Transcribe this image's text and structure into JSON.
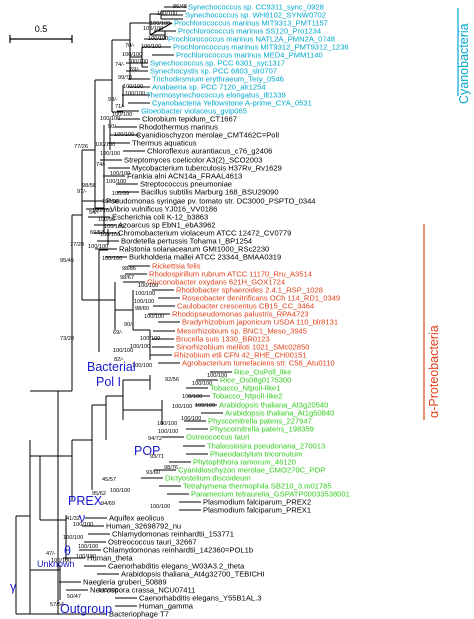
{
  "scale_bar": {
    "label": "0.5"
  },
  "colors": {
    "cyano": "#00a9cc",
    "proteo": "#e0421b",
    "euk": "#33cc1f",
    "black": "#000000",
    "blue": "#1a1ac8"
  },
  "leaves": [
    {
      "text": "Synechococcus sp. CC9311_sync_0928",
      "color": "cyano"
    },
    {
      "text": "Synechococcus sp. WH8102_SYNW0702",
      "color": "cyano"
    },
    {
      "text": "Prochlorococcus marinus MIT9313_PMT1157",
      "color": "cyano"
    },
    {
      "text": "Prochlorococcus marinus SS120_Pro1234",
      "color": "cyano"
    },
    {
      "text": "Prochlorococcus marinus NATL2A_PMN2A_0748",
      "color": "cyano"
    },
    {
      "text": "Prochlorococcus marinus MIT9312_PMT9312_1236",
      "color": "cyano"
    },
    {
      "text": "Prochlorococcus marinus MED4_PMM1140",
      "color": "cyano"
    },
    {
      "text": "Synechococcus sp. PCC 6301_syc1317",
      "color": "cyano"
    },
    {
      "text": "Synechocystis sp. PCC 6803_slr0707",
      "color": "cyano"
    },
    {
      "text": "Trichodesmium erythraeum_Tery_0546",
      "color": "cyano"
    },
    {
      "text": "Anabaena sp. PCC 7120_alr1254",
      "color": "cyano"
    },
    {
      "text": "Thermosynechococcus elongatus_tll1339",
      "color": "cyano"
    },
    {
      "text": "Cyanobacteria Yellowstone A-prime_CYA_0531",
      "color": "cyano"
    },
    {
      "text": "Gloeobacter violaceus_gvip065",
      "color": "cyano"
    },
    {
      "text": "Clorobium tepidum_CT1667",
      "color": "black"
    },
    {
      "text": "Rhodothermus marinus",
      "color": "black"
    },
    {
      "text": "Cyanidioschyzon merolae_CMT462C=PolI",
      "color": "black"
    },
    {
      "text": "Thermus aquaticus",
      "color": "black"
    },
    {
      "text": "Chloroflexus aurantiacus_c76_g2406",
      "color": "black"
    },
    {
      "text": "Streptomyces coelicolor A3(2)_SCO2003",
      "color": "black"
    },
    {
      "text": "Mycobacterium tuberculosis H37Rv_Rv1629",
      "color": "black"
    },
    {
      "text": "Frankia alni ACN14a_FRAAL4613",
      "color": "black"
    },
    {
      "text": "Streptococcus pneumoniae",
      "color": "black"
    },
    {
      "text": "Bacillus subtilis Marburg 168_BSU29090",
      "color": "black"
    },
    {
      "text": "Pseudomonas syringae pv. tomato str. DC3000_PSPTO_0344",
      "color": "black"
    },
    {
      "text": "Vibrio vulnificus YJ016_VV0186",
      "color": "black"
    },
    {
      "text": "Escherichia coli K-12_b3863",
      "color": "black"
    },
    {
      "text": "Azoarcus sp EbN1_ebA3962",
      "color": "black"
    },
    {
      "text": "Chromobacterium violaceum ATCC 12472_CV0779",
      "color": "black"
    },
    {
      "text": "Bordetella pertussis Tohama I_BP1254",
      "color": "black"
    },
    {
      "text": "Ralstonia solanacearum GMI1000_RSc2230",
      "color": "black"
    },
    {
      "text": "Burkholderia mallei ATCC 23344_BMAA0319",
      "color": "black"
    },
    {
      "text": "Rickettsia felis",
      "color": "proteo"
    },
    {
      "text": "Rhodospirillum rubrum ATCC 11170_Rru_A3514",
      "color": "proteo"
    },
    {
      "text": "Gluconobacter oxydans 621H_GOX1724",
      "color": "proteo"
    },
    {
      "text": "Rhodobacter sphaeroides 2.4.1_RSP_1028",
      "color": "proteo"
    },
    {
      "text": "Roseobacter denitrificans OCh 114_RD1_0349",
      "color": "proteo"
    },
    {
      "text": "Caulobacter crescentus CB15_CC_3464",
      "color": "proteo"
    },
    {
      "text": "Rhodopseudomonas palustris_RPA4723",
      "color": "proteo"
    },
    {
      "text": "Bradyrhizobium japonicum USDA 110_blr8131",
      "color": "proteo"
    },
    {
      "text": "Mesorhizobium sp. BNC1_Meso_3945",
      "color": "proteo"
    },
    {
      "text": "Brucella suis 1330_BR0123",
      "color": "proteo"
    },
    {
      "text": "Sinorhizobium meliloti 1021_SMc02850",
      "color": "proteo"
    },
    {
      "text": "Rhizobium etli CFN 42_RHE_CH00151",
      "color": "proteo"
    },
    {
      "text": "Agrobacterium tumefaciens str. C58_Atu0110",
      "color": "proteo"
    },
    {
      "text": "Rice_OsPoll_like",
      "color": "euk"
    },
    {
      "text": "Rice_Os08g0175300",
      "color": "euk"
    },
    {
      "text": "Tobacco_NtpolI-like1",
      "color": "euk"
    },
    {
      "text": "Tobacco_NtpolI-like2",
      "color": "euk"
    },
    {
      "text": "Arabidopsis thaliana_At3g20540",
      "color": "euk"
    },
    {
      "text": "Arabidopsis thaliana_At1g50840",
      "color": "euk"
    },
    {
      "text": "Physcomitrella patens_227947",
      "color": "euk"
    },
    {
      "text": "Physcomitrella patens_198359",
      "color": "euk"
    },
    {
      "text": "Ostreococcus tauri",
      "color": "euk"
    },
    {
      "text": "Thalassiosira pseudonana_270013",
      "color": "euk"
    },
    {
      "text": "Phaeodactylum tricornutum",
      "color": "euk"
    },
    {
      "text": "Phytophthora ramorum_46120",
      "color": "euk"
    },
    {
      "text": "Cyanidioschyzon merolae_CMO270C_POP",
      "color": "euk"
    },
    {
      "text": "Dictyostelium discoideum",
      "color": "euk"
    },
    {
      "text": "Tetrahymena thermophila SB210_3.m01785",
      "color": "euk"
    },
    {
      "text": "Paramecium tetraurelia_GSPATP00033538001",
      "color": "euk"
    },
    {
      "text": "Plasmodium falciparum_PREX2",
      "color": "black"
    },
    {
      "text": "Plasmodium falciparum_PREX1",
      "color": "black"
    },
    {
      "text": "Aquifex aeolicus",
      "color": "black"
    },
    {
      "text": "Human_32698792_nu",
      "color": "black"
    },
    {
      "text": "Chlamydomonas reinhardtii_153771",
      "color": "black"
    },
    {
      "text": "Ostreococcus tauri_32667",
      "color": "black"
    },
    {
      "text": "Chlamydomonas reinhardtii_142360=POL1b",
      "color": "black"
    },
    {
      "text": "Human_theta",
      "color": "black"
    },
    {
      "text": "Caenorhabditis elegans_W03A3.2_theta",
      "color": "black"
    },
    {
      "text": "Arabidopsis thaliana_At4g32700_TEBICHI",
      "color": "black"
    },
    {
      "text": "Naegleria gruberi_50889",
      "color": "black"
    },
    {
      "text": "Neurospora crassa_NCU07411",
      "color": "black"
    },
    {
      "text": "Caenorhabditis elegans_Y55B1AL.3",
      "color": "black"
    },
    {
      "text": "Human_gamma",
      "color": "black"
    },
    {
      "text": "Bacteriophage T7",
      "color": "black"
    }
  ],
  "supports": [
    {
      "id": "s01",
      "text": "86/48"
    },
    {
      "id": "s02",
      "text": "100/100"
    },
    {
      "id": "s03",
      "text": "100/100"
    },
    {
      "id": "s04",
      "text": "100/100"
    },
    {
      "id": "s05",
      "text": "100/100"
    },
    {
      "id": "s06",
      "text": "70/-"
    },
    {
      "id": "s07",
      "text": "100/100"
    },
    {
      "id": "s08",
      "text": "100/100"
    },
    {
      "id": "s09",
      "text": "100/100"
    },
    {
      "id": "s10",
      "text": "74/-"
    },
    {
      "id": "s11",
      "text": "69/-"
    },
    {
      "id": "s12",
      "text": "99/70"
    },
    {
      "id": "s13",
      "text": "100/100"
    },
    {
      "id": "s14",
      "text": "100/100"
    },
    {
      "id": "s15",
      "text": "98/-"
    },
    {
      "id": "s16",
      "text": "71/-"
    },
    {
      "id": "s17",
      "text": "100/100"
    },
    {
      "id": "s18",
      "text": "100/100"
    },
    {
      "id": "s19",
      "text": "77/26"
    },
    {
      "id": "s20",
      "text": "50/-"
    },
    {
      "id": "s21",
      "text": "100/100"
    },
    {
      "id": "s22",
      "text": "100/100"
    },
    {
      "id": "s23",
      "text": "100/100"
    },
    {
      "id": "s24",
      "text": "74/-"
    },
    {
      "id": "s25",
      "text": "98/58"
    },
    {
      "id": "s26",
      "text": "97/-"
    },
    {
      "id": "s27",
      "text": "100/100"
    },
    {
      "id": "s28",
      "text": "100/100"
    },
    {
      "id": "s29",
      "text": "100/99"
    },
    {
      "id": "s30",
      "text": "100/96"
    },
    {
      "id": "s31",
      "text": "100/100"
    },
    {
      "id": "s32",
      "text": "54/-"
    },
    {
      "id": "s33",
      "text": "100/90"
    },
    {
      "id": "s34",
      "text": "100/100"
    },
    {
      "id": "s35",
      "text": "60/54"
    },
    {
      "id": "s36",
      "text": "77/28"
    },
    {
      "id": "s37",
      "text": "100/100"
    },
    {
      "id": "s38",
      "text": "100/100"
    },
    {
      "id": "s39",
      "text": "100/100"
    },
    {
      "id": "s40",
      "text": "98/86"
    },
    {
      "id": "s41",
      "text": "95/45"
    },
    {
      "id": "s42",
      "text": "98/67"
    },
    {
      "id": "s43",
      "text": "100/100"
    },
    {
      "id": "s44",
      "text": "100/100"
    },
    {
      "id": "s45",
      "text": "100/100"
    },
    {
      "id": "s46",
      "text": "98/60"
    },
    {
      "id": "s47",
      "text": "100/100"
    },
    {
      "id": "s48",
      "text": "90/-"
    },
    {
      "id": "s49",
      "text": "69/-"
    },
    {
      "id": "s50",
      "text": "100/100"
    },
    {
      "id": "s51",
      "text": "100/100"
    },
    {
      "id": "s52",
      "text": "100/100"
    },
    {
      "id": "s53",
      "text": "82/-"
    },
    {
      "id": "s54",
      "text": "100/100"
    },
    {
      "id": "s55",
      "text": "100/100"
    },
    {
      "id": "s56",
      "text": "100/100"
    },
    {
      "id": "s57",
      "text": "100/100"
    },
    {
      "id": "s58",
      "text": "73/28"
    },
    {
      "id": "s59",
      "text": "92/56"
    },
    {
      "id": "s60",
      "text": "100/100"
    },
    {
      "id": "s61",
      "text": "100/100"
    },
    {
      "id": "s62",
      "text": "100/100"
    },
    {
      "id": "s63",
      "text": "100/100"
    },
    {
      "id": "s64",
      "text": "100/100"
    },
    {
      "id": "s65",
      "text": "94/72"
    },
    {
      "id": "s66",
      "text": "93/71"
    },
    {
      "id": "s67",
      "text": "98/76"
    },
    {
      "id": "s68",
      "text": "93/60"
    },
    {
      "id": "s69",
      "text": "45/57"
    },
    {
      "id": "s70",
      "text": "95/62"
    },
    {
      "id": "s71",
      "text": "100/100"
    },
    {
      "id": "s72",
      "text": "94/69"
    },
    {
      "id": "s73",
      "text": "100/100"
    },
    {
      "id": "s74",
      "text": "41/32"
    },
    {
      "id": "s75",
      "text": "100/100"
    },
    {
      "id": "s76",
      "text": "100/100"
    },
    {
      "id": "s77",
      "text": "100/100"
    },
    {
      "id": "s78",
      "text": "100/100"
    },
    {
      "id": "s79",
      "text": "100/100"
    },
    {
      "id": "s80",
      "text": "47/-"
    },
    {
      "id": "s81",
      "text": "100/100"
    },
    {
      "id": "s82",
      "text": "50/47"
    },
    {
      "id": "s83",
      "text": "57/54"
    }
  ],
  "group_labels": {
    "cyanobacteria": "Cyanobacteria",
    "bacterial": "Bacterial",
    "pol_one": "Pol I",
    "alpha_proteobacteria": "α-Proteobacteria",
    "pop": "POP",
    "prex": "PREX",
    "nu": "ν",
    "theta": "θ",
    "unknown": "Unknown",
    "gamma": "γ",
    "outgroup": "Outgroup"
  }
}
